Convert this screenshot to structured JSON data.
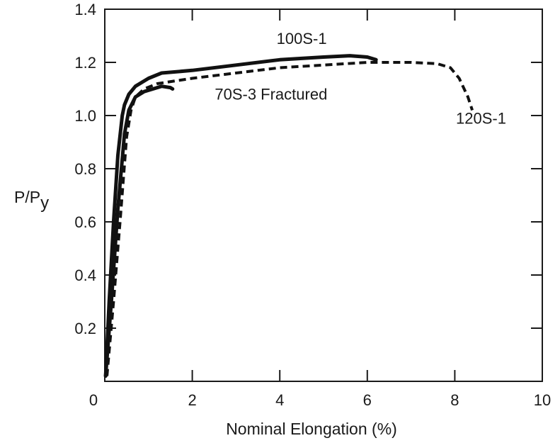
{
  "chart_data": {
    "type": "line",
    "title": "",
    "xlabel": "Nominal Elongation  (%)",
    "ylabel_main": "P/P",
    "ylabel_sub": "y",
    "xlim": [
      0,
      10
    ],
    "ylim": [
      0,
      1.4
    ],
    "x_ticks": [
      {
        "value": 0,
        "label": "0"
      },
      {
        "value": 2,
        "label": "2"
      },
      {
        "value": 4,
        "label": "4"
      },
      {
        "value": 6,
        "label": "6"
      },
      {
        "value": 8,
        "label": "8"
      },
      {
        "value": 10,
        "label": "10"
      }
    ],
    "y_ticks": [
      {
        "value": 0.2,
        "label": "0.2"
      },
      {
        "value": 0.4,
        "label": "0.4"
      },
      {
        "value": 0.6,
        "label": "0.6"
      },
      {
        "value": 0.8,
        "label": "0.8"
      },
      {
        "value": 1.0,
        "label": "1.0"
      },
      {
        "value": 1.2,
        "label": "1.2"
      },
      {
        "value": 1.4,
        "label": "1.4"
      }
    ],
    "grid": false,
    "series": [
      {
        "name": "100S-1",
        "style": "solid",
        "color": "#111111",
        "x": [
          0.02,
          0.1,
          0.2,
          0.3,
          0.4,
          0.45,
          0.55,
          0.7,
          1.0,
          1.3,
          2.0,
          3.0,
          4.0,
          5.0,
          5.6,
          6.0,
          6.2
        ],
        "y": [
          0.02,
          0.3,
          0.6,
          0.85,
          1.0,
          1.04,
          1.08,
          1.11,
          1.14,
          1.16,
          1.17,
          1.19,
          1.21,
          1.22,
          1.225,
          1.22,
          1.21
        ]
      },
      {
        "name": "70S-3 Fractured",
        "style": "solid",
        "color": "#111111",
        "x": [
          0.02,
          0.15,
          0.3,
          0.45,
          0.55,
          0.7,
          0.9,
          1.1,
          1.3,
          1.5,
          1.55
        ],
        "y": [
          0.02,
          0.3,
          0.65,
          0.93,
          1.02,
          1.07,
          1.09,
          1.1,
          1.11,
          1.105,
          1.1
        ]
      },
      {
        "name": "120S-1",
        "style": "dashed",
        "color": "#111111",
        "x": [
          0.05,
          0.2,
          0.35,
          0.5,
          0.6,
          0.7,
          0.9,
          1.2,
          2.0,
          3.0,
          4.0,
          5.0,
          6.0,
          7.0,
          7.6,
          7.9,
          8.1,
          8.3,
          8.4
        ],
        "y": [
          0.02,
          0.3,
          0.6,
          0.92,
          1.02,
          1.07,
          1.1,
          1.12,
          1.14,
          1.16,
          1.18,
          1.19,
          1.2,
          1.2,
          1.195,
          1.18,
          1.14,
          1.07,
          1.02
        ]
      }
    ],
    "annotations": [
      {
        "text": "100S-1",
        "x": 4.5,
        "y": 1.27
      },
      {
        "text": "70S-3 Fractured",
        "x": 3.8,
        "y": 1.06
      },
      {
        "text": "120S-1",
        "x": 8.6,
        "y": 0.97
      }
    ]
  }
}
